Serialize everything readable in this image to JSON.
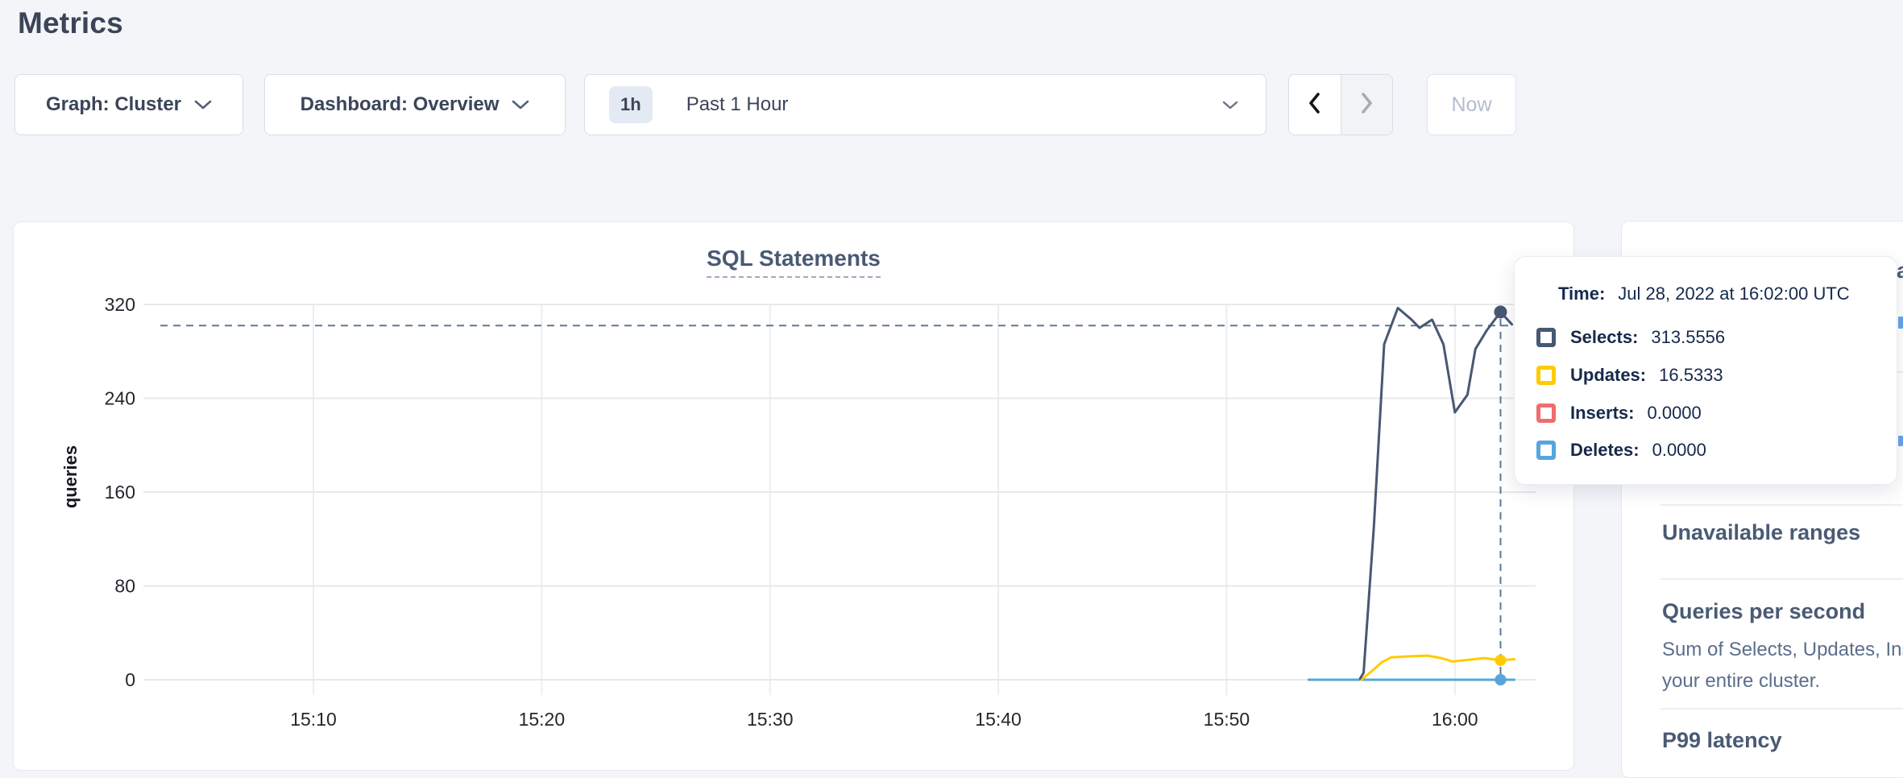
{
  "page": {
    "title": "Metrics"
  },
  "controls": {
    "graph_dropdown": {
      "label": "Graph: Cluster"
    },
    "dashboard_dropdown": {
      "label": "Dashboard: Overview"
    },
    "time_selector": {
      "badge": "1h",
      "label": "Past 1 Hour"
    },
    "now_button": {
      "label": "Now"
    }
  },
  "chart_data": {
    "type": "line",
    "title": "SQL Statements",
    "ylabel": "queries",
    "ylim": [
      0,
      320
    ],
    "yticks": [
      0,
      80,
      160,
      240,
      320
    ],
    "x_unit": "minutes after 15:00 UTC",
    "x_range_labels": [
      "15:02",
      "16:03"
    ],
    "grid": true,
    "xticks": [
      {
        "m": 10,
        "label": "15:10"
      },
      {
        "m": 20,
        "label": "15:20"
      },
      {
        "m": 30,
        "label": "15:30"
      },
      {
        "m": 40,
        "label": "15:40"
      },
      {
        "m": 50,
        "label": "15:50"
      },
      {
        "m": 60,
        "label": "16:00"
      }
    ],
    "series": [
      {
        "name": "Inserts",
        "color": "#f16d6d",
        "points": [
          [
            53.6,
            0
          ],
          [
            62.55,
            0
          ]
        ]
      },
      {
        "name": "Deletes",
        "color": "#56a6de",
        "points": [
          [
            53.6,
            0
          ],
          [
            62.6,
            0
          ]
        ]
      },
      {
        "name": "Updates",
        "color": "#ffcb00",
        "points": [
          [
            55.9,
            0
          ],
          [
            56.4,
            8
          ],
          [
            56.8,
            15
          ],
          [
            57.2,
            19
          ],
          [
            58.0,
            20
          ],
          [
            58.8,
            20.5
          ],
          [
            59.4,
            18.5
          ],
          [
            59.9,
            15.5
          ],
          [
            60.6,
            17
          ],
          [
            61.3,
            18.5
          ],
          [
            62.0,
            16.5333
          ],
          [
            62.6,
            17.5
          ]
        ]
      },
      {
        "name": "Selects",
        "color": "#475872",
        "points": [
          [
            55.85,
            1
          ],
          [
            56.0,
            6
          ],
          [
            56.45,
            130
          ],
          [
            56.9,
            286
          ],
          [
            57.5,
            317
          ],
          [
            58.1,
            307
          ],
          [
            58.45,
            300
          ],
          [
            59.0,
            307
          ],
          [
            59.5,
            286
          ],
          [
            60.0,
            228
          ],
          [
            60.55,
            243
          ],
          [
            60.9,
            282
          ],
          [
            61.4,
            298
          ],
          [
            62.0,
            313.5556
          ],
          [
            62.5,
            303
          ]
        ]
      }
    ],
    "hover": {
      "t": 62,
      "crosshair_value": 302,
      "time": "Jul 28, 2022 at 16:02:00 UTC",
      "points": [
        {
          "series": "Selects",
          "value": "313.5556"
        },
        {
          "series": "Updates",
          "value": "16.5333"
        },
        {
          "series": "Inserts",
          "value": "0.0000"
        },
        {
          "series": "Deletes",
          "value": "0.0000"
        }
      ]
    }
  },
  "tooltip": {
    "time_label": "Time:",
    "time_value": "Jul 28, 2022 at 16:02:00 UTC",
    "rows": [
      {
        "label": "Selects:",
        "value": "313.5556",
        "color": "#475872"
      },
      {
        "label": "Updates:",
        "value": "16.5333",
        "color": "#ffcb00"
      },
      {
        "label": "Inserts:",
        "value": "0.0000",
        "color": "#f16d6d"
      },
      {
        "label": "Deletes:",
        "value": "0.0000",
        "color": "#56a6de"
      }
    ]
  },
  "sidebar": {
    "edge_fragment": "a",
    "sections": [
      {
        "heading": "Unavailable ranges"
      },
      {
        "heading": "Queries per second",
        "desc_line1": "Sum of Selects, Updates, Inserts",
        "desc_line2": "your entire cluster."
      },
      {
        "heading": "P99 latency"
      }
    ]
  }
}
